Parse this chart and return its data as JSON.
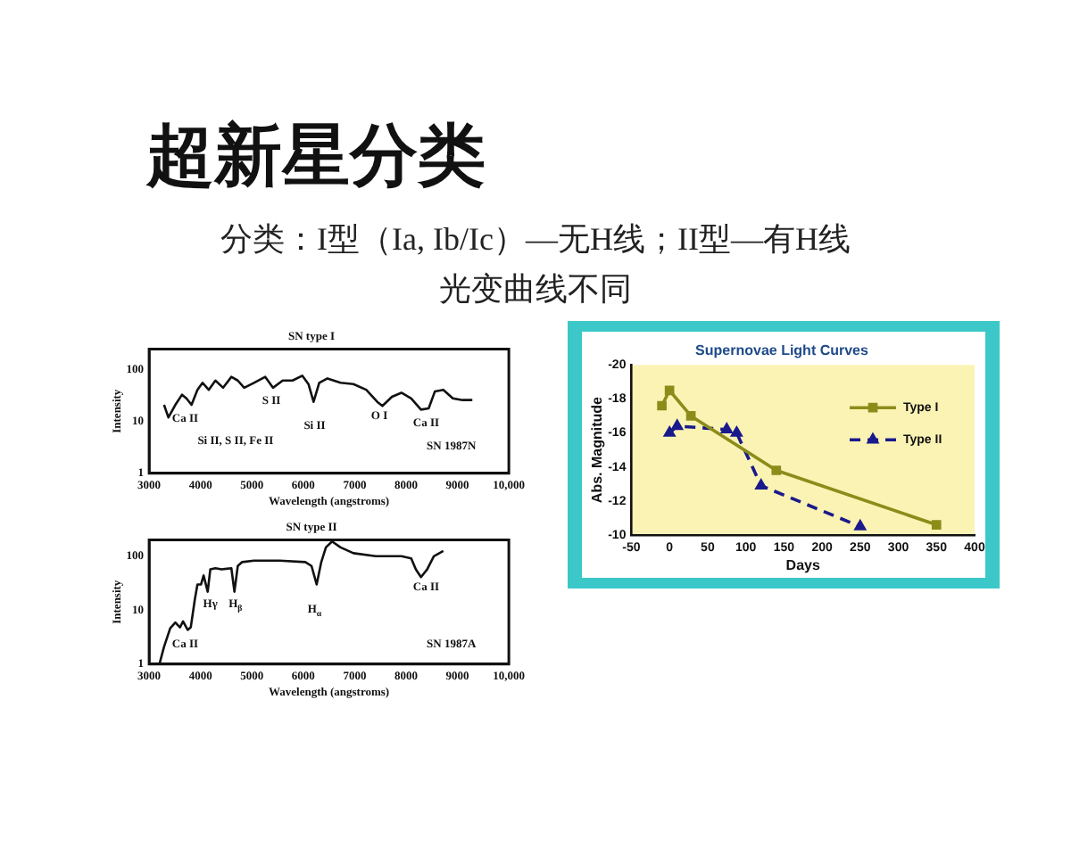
{
  "chart_data": [
    {
      "type": "line",
      "title": "SN type I",
      "xlabel": "Wavelength (angstroms)",
      "ylabel": "Intensity",
      "log": "y",
      "grid": false,
      "marker": "none",
      "line_style": "solid",
      "xlim": [
        3000,
        10000
      ],
      "xticks": [
        3000,
        4000,
        5000,
        6000,
        7000,
        8000,
        9000,
        {
          "value": 10000,
          "label": "10,000"
        }
      ],
      "ylim": [
        1,
        250
      ],
      "yticks": [
        1,
        10,
        100
      ],
      "series": [
        {
          "color": "#111111",
          "x": [
            3290,
            3375,
            3510,
            3640,
            3725,
            3825,
            3940,
            4040,
            4160,
            4290,
            4440,
            4600,
            4725,
            4850,
            5040,
            5260,
            5410,
            5600,
            5790,
            5980,
            6100,
            6200,
            6310,
            6470,
            6725,
            6975,
            7225,
            7440,
            7540,
            7725,
            7910,
            8100,
            8290,
            8440,
            8560,
            8725,
            8910,
            9100,
            9290
          ],
          "values": [
            21,
            12,
            21,
            33,
            28,
            21,
            41,
            56,
            41,
            62,
            45,
            73,
            62,
            45,
            56,
            73,
            45,
            62,
            62,
            77,
            53,
            24,
            56,
            68,
            56,
            53,
            41,
            24,
            20,
            30,
            36,
            28,
            17,
            18,
            38,
            41,
            28,
            26,
            26
          ]
        }
      ],
      "annotations": [
        "超新星分类",
        "分类：I型（Ia, Ib/Ic）—无H线；II型—有H线",
        "光变曲线不同",
        "Ca II",
        "Si II, S II, Fe II",
        "S II",
        "Si II",
        "O I",
        "Ca II",
        "SN 1987N"
      ]
    },
    {
      "type": "line",
      "title": "SN type II",
      "xlabel": "Wavelength (angstroms)",
      "ylabel": "Intensity",
      "log": "y",
      "grid": false,
      "marker": "none",
      "line_style": "solid",
      "xlim": [
        3000,
        10000
      ],
      "xticks": [
        3000,
        4000,
        5000,
        6000,
        7000,
        8000,
        9000,
        {
          "value": 10000,
          "label": "10,000"
        }
      ],
      "ylim": [
        1,
        200
      ],
      "yticks": [
        1,
        10,
        100
      ],
      "series": [
        {
          "color": "#111111",
          "x": [
            3200,
            3290,
            3410,
            3510,
            3600,
            3660,
            3750,
            3810,
            3890,
            3940,
            4010,
            4060,
            4140,
            4190,
            4290,
            4410,
            4600,
            4660,
            4725,
            4810,
            5040,
            5540,
            6040,
            6160,
            6260,
            6350,
            6440,
            6560,
            6725,
            6975,
            7410,
            7910,
            8100,
            8190,
            8290,
            8410,
            8540,
            8725
          ],
          "values": [
            1,
            2.1,
            4.6,
            5.9,
            4.8,
            6.2,
            4.3,
            4.8,
            16,
            30,
            30,
            44,
            22,
            57,
            60,
            57,
            60,
            22,
            66,
            78,
            83,
            83,
            78,
            66,
            30,
            78,
            146,
            188,
            146,
            114,
            100,
            100,
            91,
            57,
            41,
            57,
            100,
            125
          ]
        }
      ],
      "annotations": [
        "Ca II",
        "Hγ",
        "H$_{β}$",
        "H$_{α}$",
        "Ca II",
        "SN 1987A"
      ]
    },
    {
      "type": "line",
      "title": "Supernovae Light Curves",
      "xlabel": "Days",
      "ylabel": "Abs. Magnitude",
      "grid": false,
      "legend": "top right",
      "xlim": [
        -50,
        400
      ],
      "xticks": [
        -50,
        0,
        50,
        100,
        150,
        200,
        250,
        300,
        350,
        400
      ],
      "ylim": [
        -10,
        -20
      ],
      "yticks": [
        -20,
        -18,
        -16,
        -14,
        -12,
        -10
      ],
      "series": [
        {
          "name": "Type I",
          "color": "#8c8c1a",
          "marker": "square",
          "line_style": "solid",
          "x": [
            -10,
            0,
            28,
            140,
            350
          ],
          "values": [
            -17.6,
            -18.5,
            -17.0,
            -13.8,
            -10.6
          ]
        },
        {
          "name": "Type II",
          "color": "#1a1a8c",
          "marker": "triangle",
          "line_style": "dashed",
          "x": [
            0,
            10,
            75,
            88,
            120,
            250
          ],
          "values": [
            -16.0,
            -16.4,
            -16.2,
            -16.0,
            -12.9,
            -10.5
          ]
        }
      ]
    }
  ]
}
